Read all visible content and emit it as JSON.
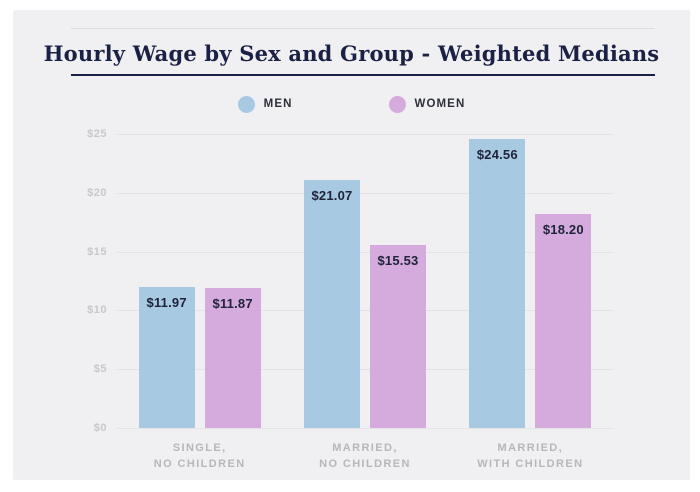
{
  "title": "Hourly Wage by Sex and Group - Weighted Medians",
  "colors": {
    "page_bg": "#ffffff",
    "card_bg": "#f0f0f2",
    "title_navy": "#1b2144",
    "gridline": "#e3e3e7",
    "y_axis_label": "#c7c8cc",
    "x_axis_label": "#b5b7bb",
    "value_label": "#20243a",
    "men_blue": "#a7c9e2",
    "women_purple": "#d5abde"
  },
  "chart_data": {
    "type": "bar",
    "title": "Hourly Wage by Sex and Group - Weighted Medians",
    "categories": [
      "SINGLE,\nNO CHILDREN",
      "MARRIED,\nNO CHILDREN",
      "MARRIED,\nWITH CHILDREN"
    ],
    "series": [
      {
        "name": "MEN",
        "color": "#a7c9e2",
        "values": [
          11.97,
          21.07,
          24.56
        ],
        "labels": [
          "$11.97",
          "$21.07",
          "$24.56"
        ]
      },
      {
        "name": "WOMEN",
        "color": "#d5abde",
        "values": [
          11.87,
          15.53,
          18.2
        ],
        "labels": [
          "$11.87",
          "$15.53",
          "$18.20"
        ]
      }
    ],
    "xlabel": "",
    "ylabel": "",
    "ylim": [
      0,
      25
    ],
    "ytick_step": 5,
    "ytick_labels": [
      "$0",
      "$5",
      "$10",
      "$15",
      "$20",
      "$25"
    ],
    "grid": true,
    "legend_position": "top"
  }
}
